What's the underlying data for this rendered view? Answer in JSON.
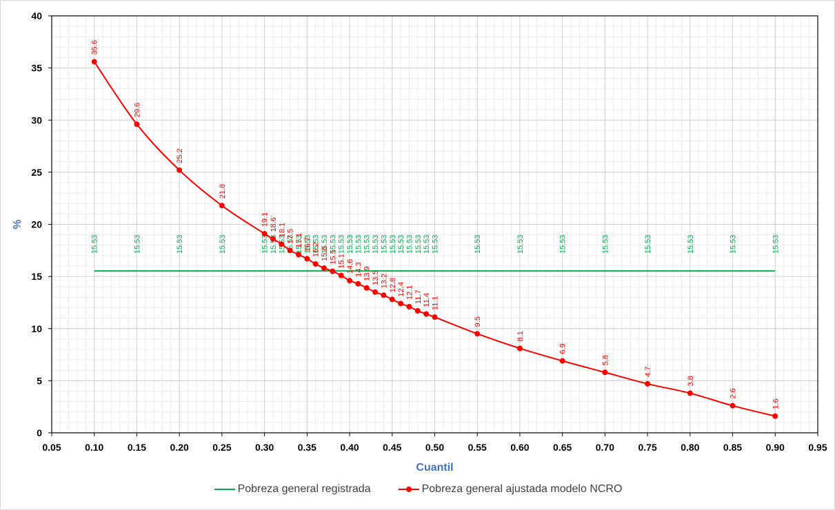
{
  "chart_data": {
    "type": "line",
    "title": "",
    "xlabel": "Cuantil",
    "ylabel": "%",
    "xlim": [
      0.05,
      0.95
    ],
    "ylim": [
      0,
      40
    ],
    "x_ticks": [
      "0.05",
      "0.10",
      "0.15",
      "0.20",
      "0.25",
      "0.30",
      "0.35",
      "0.40",
      "0.45",
      "0.50",
      "0.55",
      "0.60",
      "0.65",
      "0.70",
      "0.75",
      "0.80",
      "0.85",
      "0.90",
      "0.95"
    ],
    "y_ticks": [
      "0",
      "5",
      "10",
      "15",
      "20",
      "25",
      "30",
      "35",
      "40"
    ],
    "grid": true,
    "legend_position": "bottom",
    "series": [
      {
        "name": "Pobreza general registrada",
        "color": "#00b050",
        "marker": false,
        "x": [
          0.1,
          0.15,
          0.2,
          0.25,
          0.3,
          0.31,
          0.32,
          0.33,
          0.34,
          0.35,
          0.36,
          0.37,
          0.38,
          0.39,
          0.4,
          0.41,
          0.42,
          0.43,
          0.44,
          0.45,
          0.46,
          0.47,
          0.48,
          0.49,
          0.5,
          0.55,
          0.6,
          0.65,
          0.7,
          0.75,
          0.8,
          0.85,
          0.9
        ],
        "y": [
          15.53,
          15.53,
          15.53,
          15.53,
          15.53,
          15.53,
          15.53,
          15.53,
          15.53,
          15.53,
          15.53,
          15.53,
          15.53,
          15.53,
          15.53,
          15.53,
          15.53,
          15.53,
          15.53,
          15.53,
          15.53,
          15.53,
          15.53,
          15.53,
          15.53,
          15.53,
          15.53,
          15.53,
          15.53,
          15.53,
          15.53,
          15.53,
          15.53
        ],
        "labels": [
          "15.53",
          "15.53",
          "15.53",
          "15.53",
          "15.53",
          "15.53",
          "15.53",
          "15.53",
          "15.53",
          "15.53",
          "15.53",
          "15.53",
          "15.53",
          "15.53",
          "15.53",
          "15.53",
          "15.53",
          "15.53",
          "15.53",
          "15.53",
          "15.53",
          "15.53",
          "15.53",
          "15.53",
          "15.53",
          "15.53",
          "15.53",
          "15.53",
          "15.53",
          "15.53",
          "15.53",
          "15.53",
          "15.53"
        ]
      },
      {
        "name": "Pobreza general ajustada modelo NCRO",
        "color": "#ff0000",
        "marker": true,
        "x": [
          0.1,
          0.15,
          0.2,
          0.25,
          0.3,
          0.31,
          0.32,
          0.33,
          0.34,
          0.35,
          0.36,
          0.37,
          0.38,
          0.39,
          0.4,
          0.41,
          0.42,
          0.43,
          0.44,
          0.45,
          0.46,
          0.47,
          0.48,
          0.49,
          0.5,
          0.55,
          0.6,
          0.65,
          0.7,
          0.75,
          0.8,
          0.85,
          0.9
        ],
        "y": [
          35.6,
          29.6,
          25.2,
          21.8,
          19.1,
          18.6,
          18.1,
          17.5,
          17.1,
          16.7,
          16.2,
          15.8,
          15.5,
          15.1,
          14.6,
          14.3,
          13.9,
          13.5,
          13.2,
          12.8,
          12.4,
          12.1,
          11.7,
          11.4,
          11.1,
          9.5,
          8.1,
          6.9,
          5.8,
          4.7,
          3.8,
          2.6,
          1.6
        ],
        "labels": [
          "35.6",
          "29.6",
          "25.2",
          "21.8",
          "19.1",
          "18.6",
          "18.1",
          "17.5",
          "17.1",
          "16.7",
          "16.2",
          "15.8",
          "15.5",
          "15.1",
          "14.6",
          "14.3",
          "13.9",
          "13.5",
          "13.2",
          "12.8",
          "12.4",
          "12.1",
          "11.7",
          "11.4",
          "11.1",
          "9.5",
          "8.1",
          "6.9",
          "5.8",
          "4.7",
          "3.8",
          "2.6",
          "1.6"
        ]
      }
    ]
  }
}
